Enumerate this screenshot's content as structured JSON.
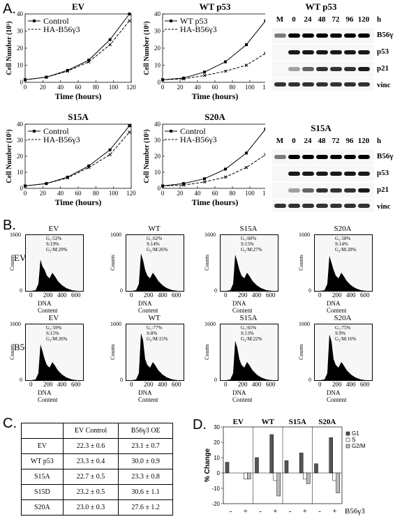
{
  "panel_letters": {
    "a": "A.",
    "b": "B.",
    "c": "C.",
    "d": "D."
  },
  "growth": {
    "x_label": "Time (hours)",
    "y_label": "Cell Number (10⁵)",
    "x_ticks": [
      "0",
      "20",
      "40",
      "60",
      "80",
      "100",
      "120"
    ],
    "y_ticks_top": [
      "0",
      "10",
      "20",
      "30",
      "40"
    ],
    "y_ticks_bottom": [
      "0",
      "10",
      "20",
      "30",
      "40"
    ],
    "charts": [
      {
        "title": "EV",
        "legend": [
          "Control",
          "HA-B56γ3"
        ]
      },
      {
        "title": "WT p53",
        "legend": [
          "WT p53",
          "HA-B56γ3"
        ]
      },
      {
        "title": "S15A",
        "legend": [
          "Control",
          "HA-B56γ3"
        ]
      },
      {
        "title": "S20A",
        "legend": [
          "Control",
          "HA-B56γ3"
        ]
      }
    ]
  },
  "chart_data": [
    {
      "type": "line",
      "title": "EV",
      "xlabel": "Time (hours)",
      "ylabel": "Cell Number (10⁵)",
      "xlim": [
        0,
        120
      ],
      "ylim": [
        0,
        40
      ],
      "x": [
        0,
        24,
        48,
        72,
        96,
        118
      ],
      "series": [
        {
          "name": "Control",
          "values": [
            1.5,
            3,
            7,
            13,
            25,
            40
          ]
        },
        {
          "name": "HA-B56γ3",
          "values": [
            1.5,
            3,
            6.5,
            12,
            22,
            36
          ]
        }
      ]
    },
    {
      "type": "line",
      "title": "WT p53",
      "xlabel": "Time (hours)",
      "ylabel": "Cell Number (10⁵)",
      "xlim": [
        0,
        120
      ],
      "ylim": [
        0,
        40
      ],
      "x": [
        0,
        24,
        48,
        72,
        96,
        118
      ],
      "series": [
        {
          "name": "WT p53",
          "values": [
            1.5,
            2.5,
            6,
            12,
            22,
            36
          ]
        },
        {
          "name": "HA-B56γ3",
          "values": [
            1.5,
            2,
            4,
            6.5,
            10,
            17
          ]
        }
      ]
    },
    {
      "type": "line",
      "title": "S15A",
      "xlabel": "Time (hours)",
      "ylabel": "Cell Number (10⁵)",
      "xlim": [
        0,
        120
      ],
      "ylim": [
        0,
        40
      ],
      "x": [
        0,
        24,
        48,
        72,
        96,
        118
      ],
      "series": [
        {
          "name": "Control",
          "values": [
            1.5,
            3,
            7,
            14,
            24,
            39
          ]
        },
        {
          "name": "HA-B56γ3",
          "values": [
            1.5,
            3,
            6.5,
            13,
            21,
            35
          ]
        }
      ]
    },
    {
      "type": "line",
      "title": "S20A",
      "xlabel": "Time (hours)",
      "ylabel": "Cell Number (10⁵)",
      "xlim": [
        0,
        120
      ],
      "ylim": [
        0,
        40
      ],
      "x": [
        0,
        24,
        48,
        72,
        96,
        118
      ],
      "series": [
        {
          "name": "Control",
          "values": [
            1.5,
            3,
            6,
            12,
            22,
            37
          ]
        },
        {
          "name": "HA-B56γ3",
          "values": [
            1.5,
            2,
            4,
            7,
            13,
            21
          ]
        }
      ]
    },
    {
      "type": "bar",
      "title": "",
      "xlabel": "",
      "ylabel": "% Change",
      "ylim": [
        -20,
        30
      ],
      "categories": [
        "EV -",
        "EV +",
        "WT -",
        "WT +",
        "S15A -",
        "S15A +",
        "S20A -",
        "S20A +"
      ],
      "series": [
        {
          "name": "G1",
          "values": [
            7,
            0,
            10,
            25,
            8,
            13,
            6,
            23
          ]
        },
        {
          "name": "S",
          "values": [
            0,
            -4,
            0,
            -5,
            0,
            -4,
            0,
            -5
          ]
        },
        {
          "name": "G2/M",
          "values": [
            0,
            -4,
            0,
            -15,
            0,
            -7,
            0,
            -13
          ]
        }
      ]
    }
  ],
  "blots": [
    {
      "title": "WT p53",
      "h": "h",
      "lanes": [
        "M",
        "0",
        "24",
        "48",
        "72",
        "96",
        "120"
      ],
      "rows": [
        "B56γ",
        "p53",
        "p21",
        "vinc"
      ]
    },
    {
      "title": "S15A",
      "h": "h",
      "lanes": [
        "M",
        "0",
        "24",
        "48",
        "72",
        "96",
        "120"
      ],
      "rows": [
        "B56γ",
        "p53",
        "p21",
        "vinc"
      ]
    }
  ],
  "flow": {
    "row_labels": [
      "EV",
      "B56γ3"
    ],
    "y_label": "Counts",
    "x_label": "DNA Content",
    "y_ticks": [
      "0",
      "1600"
    ],
    "x_ticks": [
      "0",
      "200",
      "400",
      "600"
    ],
    "panels": [
      {
        "title": "EV",
        "g1": "G₁:52%",
        "s": "S:19%",
        "g2": "G₂/M:29%"
      },
      {
        "title": "WT",
        "g1": "G₁:62%",
        "s": "S:14%",
        "g2": "G₂/M:26%"
      },
      {
        "title": "S15A",
        "g1": "G₁:60%",
        "s": "S:15%",
        "g2": "G₂/M:27%"
      },
      {
        "title": "S20A",
        "g1": "G₁:58%",
        "s": "S:14%",
        "g2": "G₂/M:28%"
      },
      {
        "title": "EV",
        "g1": "G₁:59%",
        "s": "S:15%",
        "g2": "G₂/M:26%"
      },
      {
        "title": "WT",
        "g1": "G₁:77%",
        "s": "S:8%",
        "g2": "G₂/M:15%"
      },
      {
        "title": "S15A",
        "g1": "G₁:65%",
        "s": "S:13%",
        "g2": "G₂/M:22%"
      },
      {
        "title": "S20A",
        "g1": "G₁:75%",
        "s": "S:9%",
        "g2": "G₂/M:16%"
      }
    ]
  },
  "table": {
    "headers": [
      "",
      "EV Control",
      "B56γ3 OE"
    ],
    "rows": [
      [
        "EV",
        "22.3 ± 0.6",
        "23.1 ± 0.7"
      ],
      [
        "WT p53",
        "23.3 ± 0.4",
        "30.0 ± 0.9"
      ],
      [
        "S15A",
        "22.7 ± 0.5",
        "23.3 ± 0.8"
      ],
      [
        "S15D",
        "23.2 ± 0.5",
        "30.6 ± 1.1"
      ],
      [
        "S20A",
        "23.0 ± 0.3",
        "27.6 ± 1.2"
      ]
    ]
  },
  "bar_panel": {
    "group_labels": [
      "EV",
      "WT",
      "S15A",
      "S20A"
    ],
    "y_label": "% Change",
    "y_ticks": [
      "30",
      "20",
      "10",
      "0",
      "-10",
      "-20"
    ],
    "signs": [
      "-",
      "+",
      "-",
      "+",
      "-",
      "+",
      "-",
      "+"
    ],
    "sign_label": "B56γ3",
    "legend": [
      "G1",
      "S",
      "G2/M"
    ]
  }
}
